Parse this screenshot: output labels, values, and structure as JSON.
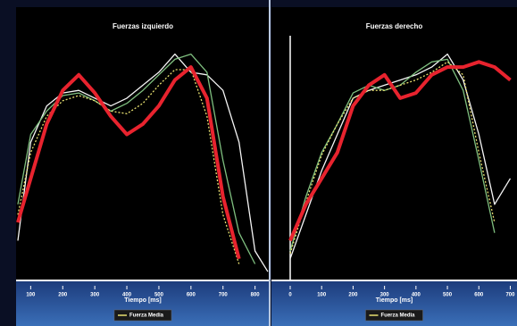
{
  "chart_data": [
    {
      "type": "line",
      "title": "Fuerzas izquierdo",
      "x_label": "Tiempo [ms]",
      "x": [
        60,
        100,
        150,
        200,
        250,
        300,
        350,
        400,
        450,
        500,
        550,
        600,
        650,
        700,
        750,
        800,
        840
      ],
      "xlim": [
        60,
        840
      ],
      "xticks": [
        100,
        200,
        300,
        400,
        500,
        600,
        700,
        800
      ],
      "ylim": [
        0,
        100
      ],
      "series": [
        {
          "color": "#f5f5f5",
          "values": [
            14,
            52,
            66,
            71,
            72,
            69,
            66,
            69,
            74,
            79,
            86,
            79,
            78,
            72,
            52,
            10,
            2
          ]
        },
        {
          "color": "#7fbf7f",
          "values": [
            28,
            55,
            64,
            70,
            71,
            68,
            64,
            67,
            72,
            78,
            84,
            86,
            79,
            45,
            17,
            5,
            null
          ]
        },
        {
          "name": "Fuerza Media",
          "color": "#e8e070",
          "dashed": true,
          "values": [
            24,
            48,
            62,
            68,
            70,
            68,
            64,
            63,
            67,
            74,
            80,
            80,
            62,
            24,
            5,
            null,
            null
          ]
        },
        {
          "color": "#e8232e",
          "width": 4,
          "values": [
            21,
            38,
            59,
            72,
            78,
            71,
            62,
            55,
            59,
            66,
            76,
            81,
            69,
            31,
            7,
            null,
            null
          ]
        }
      ]
    },
    {
      "type": "line",
      "title": "Fuerzas derecho",
      "x_label": "Tiempo [ms]",
      "x": [
        0,
        50,
        100,
        150,
        200,
        250,
        300,
        350,
        400,
        450,
        500,
        550,
        600,
        650,
        700
      ],
      "xlim": [
        0,
        710
      ],
      "xticks": [
        0,
        100,
        200,
        300,
        400,
        500,
        600,
        700
      ],
      "ylim": [
        0,
        100
      ],
      "series": [
        {
          "color": "#f5f5f5",
          "values": [
            7,
            24,
            41,
            55,
            69,
            72,
            74,
            76,
            78,
            81,
            86,
            76,
            55,
            28,
            38
          ]
        },
        {
          "color": "#7fbf7f",
          "values": [
            10,
            31,
            48,
            59,
            71,
            74,
            72,
            74,
            79,
            83,
            84,
            72,
            45,
            17,
            null
          ]
        },
        {
          "name": "Fuerza Media",
          "color": "#e8e070",
          "dashed": true,
          "values": [
            9,
            29,
            47,
            59,
            69,
            72,
            72,
            74,
            76,
            79,
            83,
            78,
            48,
            21,
            null
          ]
        },
        {
          "color": "#e8232e",
          "width": 4,
          "values": [
            14,
            28,
            38,
            48,
            66,
            74,
            78,
            69,
            71,
            78,
            81,
            81,
            83,
            81,
            76
          ]
        }
      ]
    }
  ]
}
